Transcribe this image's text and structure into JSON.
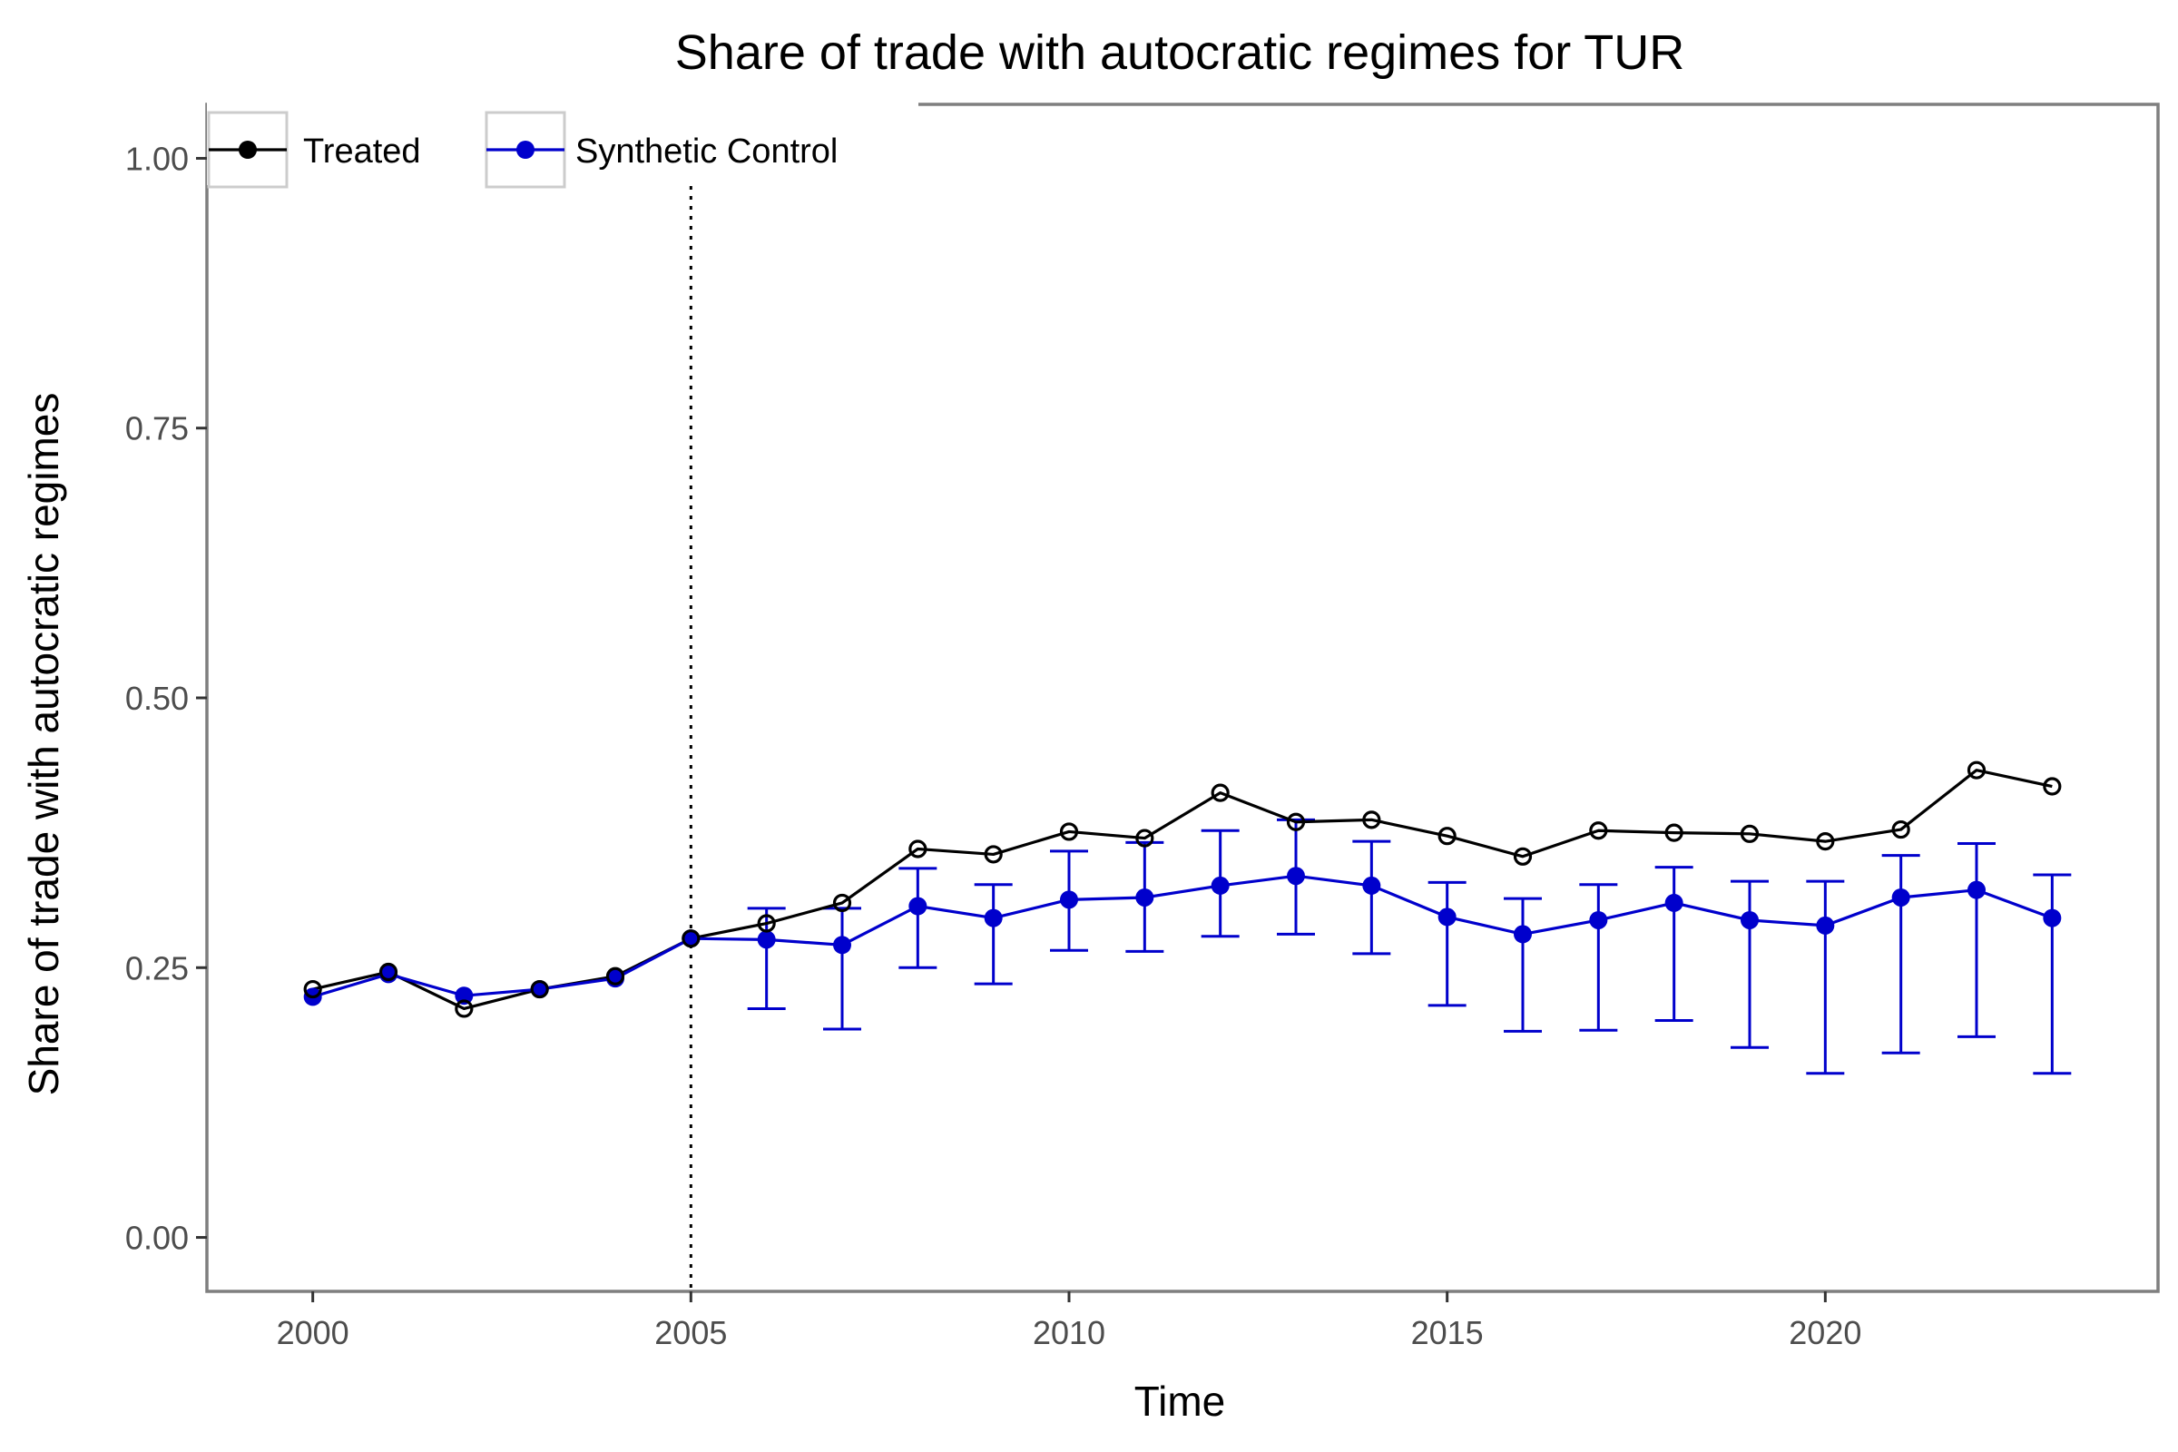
{
  "chart_data": {
    "type": "line",
    "title": "Share of trade with autocratic regimes for TUR",
    "xlabel": "Time",
    "ylabel": "Share of trade with autocratic regimes",
    "xlim": [
      1998.6,
      2024.4
    ],
    "ylim": [
      -0.05,
      1.05
    ],
    "x_ticks": [
      2000,
      2005,
      2010,
      2015,
      2020
    ],
    "y_ticks": [
      0.0,
      0.25,
      0.5,
      0.75,
      1.0
    ],
    "y_tick_labels": [
      "0.00",
      "0.25",
      "0.50",
      "0.75",
      "1.00"
    ],
    "grid": false,
    "legend_position": "top-left",
    "treatment_year": 2005,
    "x": [
      2000,
      2001,
      2002,
      2003,
      2004,
      2005,
      2006,
      2007,
      2008,
      2009,
      2010,
      2011,
      2012,
      2013,
      2014,
      2015,
      2016,
      2017,
      2018,
      2019,
      2020,
      2021,
      2022,
      2023
    ],
    "series": [
      {
        "name": "Treated",
        "color": "#000000",
        "marker": "open-circle",
        "values": [
          0.23,
          0.246,
          0.212,
          0.23,
          0.242,
          0.277,
          0.291,
          0.31,
          0.36,
          0.355,
          0.376,
          0.37,
          0.412,
          0.385,
          0.387,
          0.372,
          0.353,
          0.377,
          0.375,
          0.374,
          0.367,
          0.378,
          0.433,
          0.418
        ]
      },
      {
        "name": "Synthetic Control",
        "color": "#0000cc",
        "marker": "filled-circle",
        "values": [
          0.223,
          0.244,
          0.224,
          0.23,
          0.24,
          0.277,
          0.276,
          0.271,
          0.307,
          0.296,
          0.313,
          0.315,
          0.326,
          0.335,
          0.326,
          0.297,
          0.281,
          0.294,
          0.31,
          0.294,
          0.289,
          0.315,
          0.322,
          0.296
        ],
        "error_bars": {
          "start_index": 6,
          "lower": [
            0.212,
            0.193,
            0.25,
            0.235,
            0.266,
            0.265,
            0.279,
            0.281,
            0.263,
            0.215,
            0.191,
            0.192,
            0.201,
            0.176,
            0.152,
            0.171,
            0.186,
            0.152
          ],
          "upper": [
            0.305,
            0.305,
            0.342,
            0.327,
            0.358,
            0.366,
            0.377,
            0.387,
            0.367,
            0.329,
            0.314,
            0.327,
            0.343,
            0.33,
            0.33,
            0.354,
            0.365,
            0.336
          ]
        }
      }
    ]
  }
}
